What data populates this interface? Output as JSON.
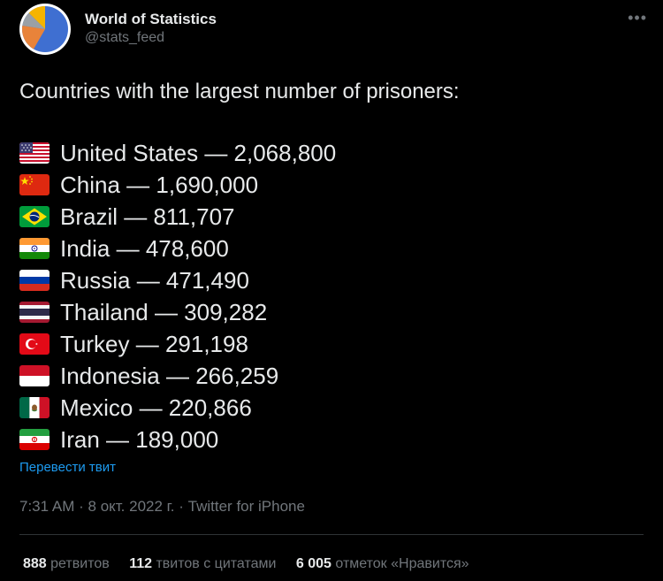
{
  "tweet": {
    "author": {
      "display_name": "World of Statistics",
      "handle": "@stats_feed",
      "avatar_icon": "pie-chart-avatar-icon"
    },
    "more_icon": "more-options-icon",
    "intro_text": "Countries with the largest number of prisoners:",
    "items": [
      {
        "flag": "us-flag-icon",
        "text": "United States — 2,068,800"
      },
      {
        "flag": "china-flag-icon",
        "text": "China — 1,690,000"
      },
      {
        "flag": "brazil-flag-icon",
        "text": "Brazil — 811,707"
      },
      {
        "flag": "india-flag-icon",
        "text": "India — 478,600"
      },
      {
        "flag": "russia-flag-icon",
        "text": "Russia — 471,490"
      },
      {
        "flag": "thailand-flag-icon",
        "text": "Thailand — 309,282"
      },
      {
        "flag": "turkey-flag-icon",
        "text": "Turkey — 291,198"
      },
      {
        "flag": "indonesia-flag-icon",
        "text": "Indonesia — 266,259"
      },
      {
        "flag": "mexico-flag-icon",
        "text": "Mexico — 220,866"
      },
      {
        "flag": "iran-flag-icon",
        "text": "Iran — 189,000"
      }
    ],
    "translate_label": "Перевести твит",
    "time": "7:31 AM",
    "date": "8 окт. 2022 г.",
    "separator": "·",
    "source": "Twitter for iPhone",
    "stats": {
      "retweets_count": "888",
      "retweets_label": "ретвитов",
      "quotes_count": "112",
      "quotes_label": "твитов с цитатами",
      "likes_count": "6 005",
      "likes_label": "отметок «Нравится»"
    }
  },
  "colors": {
    "background": "#000000",
    "text": "#e7e9ea",
    "muted": "#71767b",
    "link": "#1d9bf0",
    "divider": "#2f3336"
  }
}
